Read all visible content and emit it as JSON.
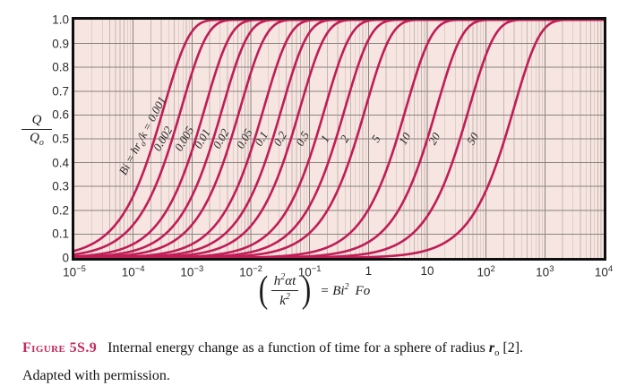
{
  "caption": {
    "label": "Figure 5S.9",
    "text_a": "Internal energy change as a function of time for a sphere of radius ",
    "radius_var": "r",
    "radius_sub": "o",
    "text_b": " [2].",
    "line2": "Adapted with permission."
  },
  "colors": {
    "curve": "#c01d56",
    "plot_bg": "#f7e5e1",
    "grid_minor": "#c4b8b4",
    "grid_major": "#8a8480",
    "axis_border": "#0f0f0f",
    "caption_label": "#c42a5c"
  },
  "chart_data": {
    "type": "line",
    "title": "",
    "xlabel": "(h^2*alpha*t/k^2) = Bi^2 Fo",
    "ylabel": "Q/Qo",
    "x_scale": "log10",
    "xlim": [
      1e-05,
      10000.0
    ],
    "ylim": [
      0,
      1.0
    ],
    "grid": "on",
    "curve_model": "Q/Qo = 1 - exp(-x/tau), x = Bi^2*Fo",
    "x_ticks": [
      "10^-5",
      "10^-4",
      "10^-3",
      "10^-2",
      "10^-1",
      "1",
      "10",
      "10^2",
      "10^3",
      "10^4"
    ],
    "y_ticks": [
      "1.0",
      "0.9",
      "0.8",
      "0.7",
      "0.6",
      "0.5",
      "0.4",
      "0.3",
      "0.2",
      "0.1",
      "0"
    ],
    "ylabel_num": "Q",
    "ylabel_den": "Q",
    "ylabel_den_sub": "o",
    "xlabel_parts": {
      "open_paren": "(",
      "num_base": "h",
      "num_sup": "2",
      "num_rest": "αt",
      "den_base": "k",
      "den_sup": "2",
      "close_paren": ")",
      "equals": "=",
      "rhs_base": "Bi",
      "rhs_sup": "2",
      "rhs_tail": "Fo"
    },
    "series": [
      {
        "name": "Bi = hr_o/k = 0.001",
        "bi": 0.001,
        "tau": 0.000333,
        "label_parts": [
          "Bi = hr",
          "o",
          "/k = 0.001"
        ],
        "label_u": -3.83,
        "label_q": 0.51,
        "label_rot": -62
      },
      {
        "name": "0.002",
        "bi": 0.002,
        "tau": 0.000667,
        "label": "0.002",
        "label_u": -3.5,
        "label_q": 0.5,
        "label_rot": -60
      },
      {
        "name": "0.005",
        "bi": 0.005,
        "tau": 0.00167,
        "label": "0.005",
        "label_u": -3.12,
        "label_q": 0.5,
        "label_rot": -60
      },
      {
        "name": "0.01",
        "bi": 0.01,
        "tau": 0.00333,
        "label": "0.01",
        "label_u": -2.82,
        "label_q": 0.5,
        "label_rot": -60
      },
      {
        "name": "0.02",
        "bi": 0.02,
        "tau": 0.00667,
        "label": "0.02",
        "label_u": -2.5,
        "label_q": 0.5,
        "label_rot": -60
      },
      {
        "name": "0.05",
        "bi": 0.05,
        "tau": 0.0168,
        "label": "0.05",
        "label_u": -2.11,
        "label_q": 0.5,
        "label_rot": -60
      },
      {
        "name": "0.1",
        "bi": 0.1,
        "tau": 0.034,
        "label": "0.1",
        "label_u": -1.81,
        "label_q": 0.5,
        "label_rot": -60
      },
      {
        "name": "0.2",
        "bi": 0.2,
        "tau": 0.0694,
        "label": "0.2",
        "label_u": -1.5,
        "label_q": 0.5,
        "label_rot": -60
      },
      {
        "name": "0.5",
        "bi": 0.5,
        "tau": 0.184,
        "label": "0.5",
        "label_u": -1.11,
        "label_q": 0.5,
        "label_rot": -60
      },
      {
        "name": "1",
        "bi": 1,
        "tau": 0.405,
        "label": "1",
        "label_u": -0.74,
        "label_q": 0.5,
        "label_rot": -60
      },
      {
        "name": "2",
        "bi": 2,
        "tau": 0.9,
        "label": "2",
        "label_u": -0.4,
        "label_q": 0.5,
        "label_rot": -60
      },
      {
        "name": "5",
        "bi": 5,
        "tau": 4.4,
        "label": "5",
        "label_u": 0.13,
        "label_q": 0.5,
        "label_rot": -60
      },
      {
        "name": "10",
        "bi": 10,
        "tau": 14.5,
        "label": "10",
        "label_u": 0.62,
        "label_q": 0.5,
        "label_rot": -60
      },
      {
        "name": "20",
        "bi": 20,
        "tau": 52,
        "label": "20",
        "label_u": 1.12,
        "label_q": 0.5,
        "label_rot": -60
      },
      {
        "name": "50",
        "bi": 50,
        "tau": 300,
        "label": "50",
        "label_u": 1.78,
        "label_q": 0.5,
        "label_rot": -60
      }
    ]
  }
}
